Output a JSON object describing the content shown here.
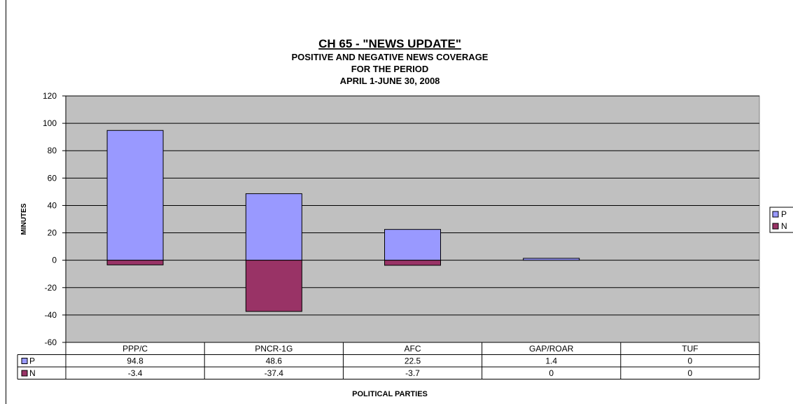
{
  "chart_data": {
    "type": "bar",
    "stacked": true,
    "title_lines": [
      "CH 65 - \"NEWS UPDATE\"",
      "POSITIVE AND NEGATIVE NEWS COVERAGE",
      "FOR THE PERIOD",
      "APRIL 1-JUNE 30, 2008"
    ],
    "xlabel": "POLITICAL PARTIES",
    "ylabel": "MINUTES",
    "ylim": [
      -60,
      120
    ],
    "yticks": [
      120,
      100,
      80,
      60,
      40,
      20,
      0,
      -20,
      -40,
      -60
    ],
    "yticklabels": [
      "120",
      "100",
      "80",
      "60",
      "40",
      "20",
      "0",
      "-20",
      "-40",
      "-60"
    ],
    "categories": [
      "PPP/C",
      "PNCR-1G",
      "AFC",
      "GAP/ROAR",
      "TUF"
    ],
    "series": [
      {
        "name": "P",
        "values": [
          94.8,
          48.6,
          22.5,
          1.4,
          0
        ],
        "labels": [
          "94.8",
          "48.6",
          "22.5",
          "1.4",
          "0"
        ]
      },
      {
        "name": "N",
        "values": [
          -3.4,
          -37.4,
          -3.7,
          0,
          0
        ],
        "labels": [
          "-3.4",
          "-37.4",
          "-3.7",
          "0",
          "0"
        ]
      }
    ],
    "colors": {
      "P": "#9999ff",
      "N": "#993366",
      "plot_bg": "#c0c0c0"
    },
    "grid": true,
    "legend_position": "right",
    "data_table": true
  }
}
